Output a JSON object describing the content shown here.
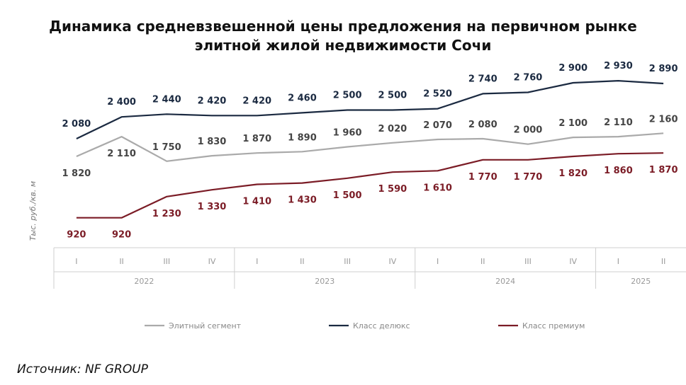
{
  "chart_data": {
    "type": "line",
    "title": [
      "Динамика средневзвешенной цены предложения на первичном рынке",
      "элитной жилой недвижимости Сочи"
    ],
    "ylabel": "Тыс. руб./кв. м",
    "quarters": [
      "I",
      "II",
      "III",
      "IV",
      "I",
      "II",
      "III",
      "IV",
      "I",
      "II",
      "III",
      "IV",
      "I",
      "II"
    ],
    "years": [
      {
        "label": "2022",
        "count": 4
      },
      {
        "label": "2023",
        "count": 4
      },
      {
        "label": "2024",
        "count": 4
      },
      {
        "label": "2025",
        "count": 2
      }
    ],
    "ylim": [
      800,
      3000
    ],
    "series": [
      {
        "name": "Элитный сегмент",
        "color": "#aaaaaa",
        "values": [
          1820,
          2110,
          1750,
          1830,
          1870,
          1890,
          1960,
          2020,
          2070,
          2080,
          2000,
          2100,
          2110,
          2160
        ],
        "labels": [
          "1 820",
          "2 110",
          "1 750",
          "1 830",
          "1 870",
          "1 890",
          "1 960",
          "2 020",
          "2 070",
          "2 080",
          "2 000",
          "2 100",
          "2 110",
          "2 160"
        ]
      },
      {
        "name": "Класс делюкс",
        "color": "#1b2a41",
        "values": [
          2080,
          2400,
          2440,
          2420,
          2420,
          2460,
          2500,
          2500,
          2520,
          2740,
          2760,
          2900,
          2930,
          2890
        ],
        "labels": [
          "2 080",
          "2 400",
          "2 440",
          "2 420",
          "2 420",
          "2 460",
          "2 500",
          "2 500",
          "2 520",
          "2 740",
          "2 760",
          "2 900",
          "2 930",
          "2 890"
        ]
      },
      {
        "name": "Класс премиум",
        "color": "#7b1c26",
        "values": [
          920,
          920,
          1230,
          1330,
          1410,
          1430,
          1500,
          1590,
          1610,
          1770,
          1770,
          1820,
          1860,
          1870
        ],
        "labels": [
          "920",
          "920",
          "1 230",
          "1 330",
          "1 410",
          "1 430",
          "1 500",
          "1 590",
          "1 610",
          "1 770",
          "1 770",
          "1 820",
          "1 860",
          "1 870"
        ]
      }
    ],
    "legend_position": "bottom",
    "grid": false
  },
  "source": "Источник: NF GROUP"
}
